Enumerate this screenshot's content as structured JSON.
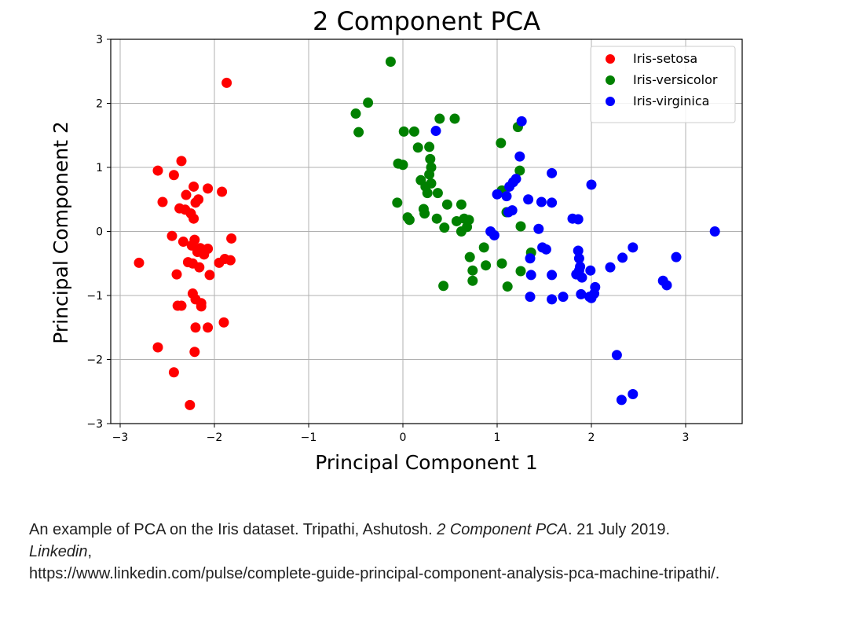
{
  "chart_data": {
    "type": "scatter",
    "title": "2 Component PCA",
    "xlabel": "Principal Component 1",
    "ylabel": "Principal Component 2",
    "xlim": [
      -3.1,
      3.6
    ],
    "ylim": [
      -3,
      3
    ],
    "xticks": [
      -3,
      -2,
      -1,
      0,
      1,
      2,
      3
    ],
    "yticks": [
      -3,
      -2,
      -1,
      0,
      1,
      2,
      3
    ],
    "tick_labels_x": [
      "−3",
      "−2",
      "−1",
      "0",
      "1",
      "2",
      "3"
    ],
    "tick_labels_y": [
      "−3",
      "−2",
      "−1",
      "0",
      "1",
      "2",
      "3"
    ],
    "grid": true,
    "legend_position": "top-right",
    "series": [
      {
        "name": "Iris-setosa",
        "color": "#ff0000",
        "points": [
          [
            -1.87,
            2.32
          ],
          [
            -2.35,
            1.1
          ],
          [
            -2.6,
            0.95
          ],
          [
            -2.43,
            0.88
          ],
          [
            -2.22,
            0.7
          ],
          [
            -2.07,
            0.67
          ],
          [
            -1.92,
            0.62
          ],
          [
            -2.3,
            0.57
          ],
          [
            -2.17,
            0.5
          ],
          [
            -2.55,
            0.46
          ],
          [
            -2.2,
            0.45
          ],
          [
            -2.37,
            0.36
          ],
          [
            -2.31,
            0.34
          ],
          [
            -2.25,
            0.28
          ],
          [
            -2.22,
            0.2
          ],
          [
            -2.45,
            -0.07
          ],
          [
            -1.82,
            -0.11
          ],
          [
            -2.21,
            -0.13
          ],
          [
            -2.33,
            -0.16
          ],
          [
            -2.24,
            -0.22
          ],
          [
            -2.15,
            -0.26
          ],
          [
            -2.07,
            -0.27
          ],
          [
            -2.18,
            -0.32
          ],
          [
            -2.11,
            -0.36
          ],
          [
            -2.8,
            -0.49
          ],
          [
            -2.28,
            -0.48
          ],
          [
            -2.23,
            -0.5
          ],
          [
            -1.83,
            -0.45
          ],
          [
            -1.89,
            -0.43
          ],
          [
            -1.95,
            -0.49
          ],
          [
            -2.16,
            -0.56
          ],
          [
            -2.4,
            -0.67
          ],
          [
            -2.05,
            -0.68
          ],
          [
            -2.23,
            -0.97
          ],
          [
            -2.2,
            -1.06
          ],
          [
            -2.14,
            -1.12
          ],
          [
            -2.35,
            -1.16
          ],
          [
            -2.39,
            -1.16
          ],
          [
            -2.14,
            -1.17
          ],
          [
            -2.2,
            -1.5
          ],
          [
            -2.07,
            -1.5
          ],
          [
            -1.9,
            -1.42
          ],
          [
            -2.6,
            -1.81
          ],
          [
            -2.21,
            -1.88
          ],
          [
            -2.43,
            -2.2
          ],
          [
            -2.26,
            -2.71
          ]
        ]
      },
      {
        "name": "Iris-versicolor",
        "color": "#008000",
        "points": [
          [
            -0.13,
            2.65
          ],
          [
            -0.37,
            2.01
          ],
          [
            -0.5,
            1.84
          ],
          [
            0.39,
            1.76
          ],
          [
            0.55,
            1.76
          ],
          [
            -0.47,
            1.55
          ],
          [
            0.01,
            1.56
          ],
          [
            0.12,
            1.56
          ],
          [
            1.22,
            1.63
          ],
          [
            1.04,
            1.38
          ],
          [
            0.16,
            1.31
          ],
          [
            0.28,
            1.32
          ],
          [
            0.29,
            1.13
          ],
          [
            -0.05,
            1.06
          ],
          [
            0.0,
            1.04
          ],
          [
            0.3,
            1.0
          ],
          [
            1.24,
            0.95
          ],
          [
            0.28,
            0.89
          ],
          [
            0.19,
            0.8
          ],
          [
            0.3,
            0.75
          ],
          [
            0.24,
            0.7
          ],
          [
            0.37,
            0.6
          ],
          [
            0.26,
            0.6
          ],
          [
            1.05,
            0.64
          ],
          [
            -0.06,
            0.45
          ],
          [
            0.47,
            0.42
          ],
          [
            0.62,
            0.42
          ],
          [
            0.22,
            0.35
          ],
          [
            1.1,
            0.3
          ],
          [
            0.23,
            0.28
          ],
          [
            0.05,
            0.22
          ],
          [
            0.36,
            0.2
          ],
          [
            0.57,
            0.16
          ],
          [
            0.65,
            0.2
          ],
          [
            0.7,
            0.18
          ],
          [
            0.07,
            0.18
          ],
          [
            1.25,
            0.08
          ],
          [
            0.44,
            0.06
          ],
          [
            0.62,
            0.0
          ],
          [
            0.68,
            0.07
          ],
          [
            0.86,
            -0.25
          ],
          [
            0.71,
            -0.4
          ],
          [
            1.36,
            -0.33
          ],
          [
            1.05,
            -0.5
          ],
          [
            0.88,
            -0.53
          ],
          [
            0.74,
            -0.61
          ],
          [
            1.25,
            -0.62
          ],
          [
            0.74,
            -0.77
          ],
          [
            1.11,
            -0.86
          ],
          [
            0.43,
            -0.85
          ]
        ]
      },
      {
        "name": "Iris-virginica",
        "color": "#0000ff",
        "points": [
          [
            1.26,
            1.72
          ],
          [
            0.35,
            1.57
          ],
          [
            1.24,
            1.17
          ],
          [
            1.58,
            0.91
          ],
          [
            1.2,
            0.82
          ],
          [
            1.17,
            0.77
          ],
          [
            1.13,
            0.7
          ],
          [
            2.0,
            0.73
          ],
          [
            1.0,
            0.58
          ],
          [
            1.1,
            0.55
          ],
          [
            1.33,
            0.5
          ],
          [
            1.47,
            0.46
          ],
          [
            1.58,
            0.45
          ],
          [
            1.16,
            0.33
          ],
          [
            1.12,
            0.3
          ],
          [
            1.8,
            0.2
          ],
          [
            1.86,
            0.19
          ],
          [
            1.44,
            0.04
          ],
          [
            3.31,
            0.0
          ],
          [
            0.93,
            0.0
          ],
          [
            0.97,
            -0.06
          ],
          [
            1.48,
            -0.25
          ],
          [
            1.52,
            -0.28
          ],
          [
            1.35,
            -0.42
          ],
          [
            2.44,
            -0.25
          ],
          [
            1.86,
            -0.3
          ],
          [
            2.33,
            -0.41
          ],
          [
            2.9,
            -0.4
          ],
          [
            1.87,
            -0.42
          ],
          [
            1.88,
            -0.55
          ],
          [
            2.2,
            -0.56
          ],
          [
            1.87,
            -0.61
          ],
          [
            1.84,
            -0.67
          ],
          [
            1.99,
            -0.61
          ],
          [
            1.36,
            -0.68
          ],
          [
            1.9,
            -0.72
          ],
          [
            1.58,
            -0.68
          ],
          [
            2.76,
            -0.77
          ],
          [
            2.8,
            -0.84
          ],
          [
            2.04,
            -0.87
          ],
          [
            2.03,
            -0.97
          ],
          [
            1.89,
            -0.98
          ],
          [
            1.98,
            -1.02
          ],
          [
            1.7,
            -1.02
          ],
          [
            1.58,
            -1.06
          ],
          [
            2.0,
            -1.04
          ],
          [
            1.35,
            -1.02
          ],
          [
            2.27,
            -1.93
          ],
          [
            2.44,
            -2.54
          ],
          [
            2.32,
            -2.63
          ]
        ]
      }
    ]
  },
  "caption": {
    "part1": "An example of PCA on the Iris dataset. Tripathi, Ashutosh. ",
    "title_italic": "2 Component PCA",
    "part2": ". 21 July 2019. ",
    "source_italic": "Linkedin",
    "part3": ",",
    "url": "https://www.linkedin.com/pulse/complete-guide-principal-component-analysis-pca-machine-tripathi/."
  }
}
